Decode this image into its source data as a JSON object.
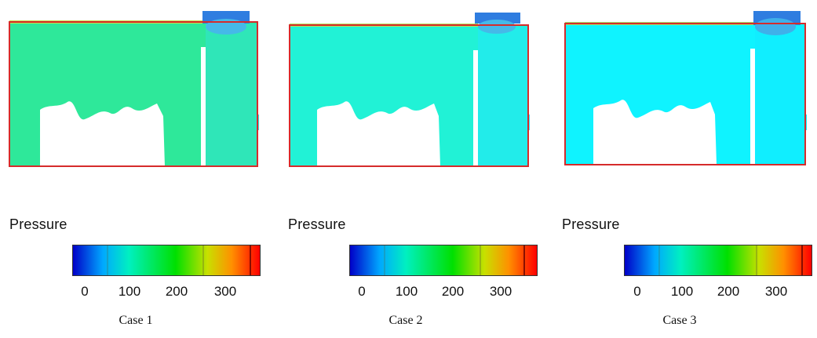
{
  "colors": {
    "wall": "#d62b2b",
    "inlet": "#2f7de0",
    "low": "#0000c8",
    "high": "#ff0000"
  },
  "panels": [
    {
      "caption": "Case 1",
      "legend_title": "Pressure",
      "ticks": [
        "0",
        "100",
        "200",
        "300"
      ],
      "fluid_color": "#2ee89a"
    },
    {
      "caption": "Case 2",
      "legend_title": "Pressure",
      "ticks": [
        "0",
        "100",
        "200",
        "300"
      ],
      "fluid_color": "#21f2d6"
    },
    {
      "caption": "Case 3",
      "legend_title": "Pressure",
      "ticks": [
        "0",
        "100",
        "200",
        "300"
      ],
      "fluid_color": "#0ff3ff"
    }
  ]
}
